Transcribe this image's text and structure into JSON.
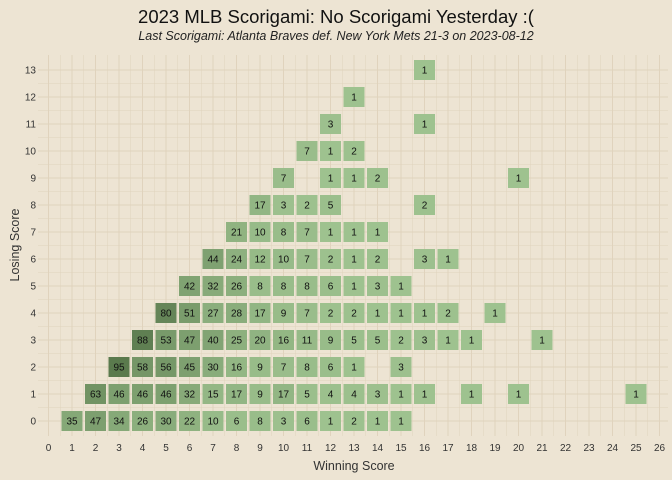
{
  "chart_data": {
    "type": "heatmap",
    "title": "2023 MLB Scorigami: No Scorigami Yesterday :(",
    "subtitle": "Last Scorigami: Atlanta Braves def. New York Mets 21-3 on 2023-08-12",
    "xlabel": "Winning Score",
    "ylabel": "Losing Score",
    "xlim": [
      0,
      26
    ],
    "ylim": [
      0,
      13
    ],
    "x_ticks": [
      0,
      1,
      2,
      3,
      4,
      5,
      6,
      7,
      8,
      9,
      10,
      11,
      12,
      13,
      14,
      15,
      16,
      17,
      18,
      19,
      20,
      21,
      22,
      23,
      24,
      25,
      26
    ],
    "y_ticks": [
      0,
      1,
      2,
      3,
      4,
      5,
      6,
      7,
      8,
      9,
      10,
      11,
      12,
      13
    ],
    "grid": true,
    "colors": {
      "background": "#ede4d3",
      "grid": "#e0d3bd",
      "low": "#9ec28f",
      "high": "#5a7a4d"
    },
    "cells": [
      {
        "x": 1,
        "y": 0,
        "count": 35
      },
      {
        "x": 2,
        "y": 0,
        "count": 47
      },
      {
        "x": 3,
        "y": 0,
        "count": 34
      },
      {
        "x": 4,
        "y": 0,
        "count": 26
      },
      {
        "x": 5,
        "y": 0,
        "count": 30
      },
      {
        "x": 6,
        "y": 0,
        "count": 22
      },
      {
        "x": 7,
        "y": 0,
        "count": 10
      },
      {
        "x": 8,
        "y": 0,
        "count": 6
      },
      {
        "x": 9,
        "y": 0,
        "count": 8
      },
      {
        "x": 10,
        "y": 0,
        "count": 3
      },
      {
        "x": 11,
        "y": 0,
        "count": 6
      },
      {
        "x": 12,
        "y": 0,
        "count": 1
      },
      {
        "x": 13,
        "y": 0,
        "count": 2
      },
      {
        "x": 14,
        "y": 0,
        "count": 1
      },
      {
        "x": 15,
        "y": 0,
        "count": 1
      },
      {
        "x": 2,
        "y": 1,
        "count": 63
      },
      {
        "x": 3,
        "y": 1,
        "count": 46
      },
      {
        "x": 4,
        "y": 1,
        "count": 46
      },
      {
        "x": 5,
        "y": 1,
        "count": 46
      },
      {
        "x": 6,
        "y": 1,
        "count": 32
      },
      {
        "x": 7,
        "y": 1,
        "count": 15
      },
      {
        "x": 8,
        "y": 1,
        "count": 17
      },
      {
        "x": 9,
        "y": 1,
        "count": 9
      },
      {
        "x": 10,
        "y": 1,
        "count": 17
      },
      {
        "x": 11,
        "y": 1,
        "count": 5
      },
      {
        "x": 12,
        "y": 1,
        "count": 4
      },
      {
        "x": 13,
        "y": 1,
        "count": 4
      },
      {
        "x": 14,
        "y": 1,
        "count": 3
      },
      {
        "x": 15,
        "y": 1,
        "count": 1
      },
      {
        "x": 16,
        "y": 1,
        "count": 1
      },
      {
        "x": 18,
        "y": 1,
        "count": 1
      },
      {
        "x": 20,
        "y": 1,
        "count": 1
      },
      {
        "x": 25,
        "y": 1,
        "count": 1
      },
      {
        "x": 3,
        "y": 2,
        "count": 95
      },
      {
        "x": 4,
        "y": 2,
        "count": 58
      },
      {
        "x": 5,
        "y": 2,
        "count": 56
      },
      {
        "x": 6,
        "y": 2,
        "count": 45
      },
      {
        "x": 7,
        "y": 2,
        "count": 30
      },
      {
        "x": 8,
        "y": 2,
        "count": 16
      },
      {
        "x": 9,
        "y": 2,
        "count": 9
      },
      {
        "x": 10,
        "y": 2,
        "count": 7
      },
      {
        "x": 11,
        "y": 2,
        "count": 8
      },
      {
        "x": 12,
        "y": 2,
        "count": 6
      },
      {
        "x": 13,
        "y": 2,
        "count": 1
      },
      {
        "x": 15,
        "y": 2,
        "count": 3
      },
      {
        "x": 4,
        "y": 3,
        "count": 88
      },
      {
        "x": 5,
        "y": 3,
        "count": 53
      },
      {
        "x": 6,
        "y": 3,
        "count": 47
      },
      {
        "x": 7,
        "y": 3,
        "count": 40
      },
      {
        "x": 8,
        "y": 3,
        "count": 25
      },
      {
        "x": 9,
        "y": 3,
        "count": 20
      },
      {
        "x": 10,
        "y": 3,
        "count": 16
      },
      {
        "x": 11,
        "y": 3,
        "count": 11
      },
      {
        "x": 12,
        "y": 3,
        "count": 9
      },
      {
        "x": 13,
        "y": 3,
        "count": 5
      },
      {
        "x": 14,
        "y": 3,
        "count": 5
      },
      {
        "x": 15,
        "y": 3,
        "count": 2
      },
      {
        "x": 16,
        "y": 3,
        "count": 3
      },
      {
        "x": 17,
        "y": 3,
        "count": 1
      },
      {
        "x": 18,
        "y": 3,
        "count": 1
      },
      {
        "x": 21,
        "y": 3,
        "count": 1
      },
      {
        "x": 5,
        "y": 4,
        "count": 80
      },
      {
        "x": 6,
        "y": 4,
        "count": 51
      },
      {
        "x": 7,
        "y": 4,
        "count": 27
      },
      {
        "x": 8,
        "y": 4,
        "count": 28
      },
      {
        "x": 9,
        "y": 4,
        "count": 17
      },
      {
        "x": 10,
        "y": 4,
        "count": 9
      },
      {
        "x": 11,
        "y": 4,
        "count": 7
      },
      {
        "x": 12,
        "y": 4,
        "count": 2
      },
      {
        "x": 13,
        "y": 4,
        "count": 2
      },
      {
        "x": 14,
        "y": 4,
        "count": 1
      },
      {
        "x": 15,
        "y": 4,
        "count": 1
      },
      {
        "x": 16,
        "y": 4,
        "count": 1
      },
      {
        "x": 17,
        "y": 4,
        "count": 2
      },
      {
        "x": 19,
        "y": 4,
        "count": 1
      },
      {
        "x": 6,
        "y": 5,
        "count": 42
      },
      {
        "x": 7,
        "y": 5,
        "count": 32
      },
      {
        "x": 8,
        "y": 5,
        "count": 26
      },
      {
        "x": 9,
        "y": 5,
        "count": 8
      },
      {
        "x": 10,
        "y": 5,
        "count": 8
      },
      {
        "x": 11,
        "y": 5,
        "count": 8
      },
      {
        "x": 12,
        "y": 5,
        "count": 6
      },
      {
        "x": 13,
        "y": 5,
        "count": 1
      },
      {
        "x": 14,
        "y": 5,
        "count": 3
      },
      {
        "x": 15,
        "y": 5,
        "count": 1
      },
      {
        "x": 7,
        "y": 6,
        "count": 44
      },
      {
        "x": 8,
        "y": 6,
        "count": 24
      },
      {
        "x": 9,
        "y": 6,
        "count": 12
      },
      {
        "x": 10,
        "y": 6,
        "count": 10
      },
      {
        "x": 11,
        "y": 6,
        "count": 7
      },
      {
        "x": 12,
        "y": 6,
        "count": 2
      },
      {
        "x": 13,
        "y": 6,
        "count": 1
      },
      {
        "x": 14,
        "y": 6,
        "count": 2
      },
      {
        "x": 16,
        "y": 6,
        "count": 3
      },
      {
        "x": 17,
        "y": 6,
        "count": 1
      },
      {
        "x": 8,
        "y": 7,
        "count": 21
      },
      {
        "x": 9,
        "y": 7,
        "count": 10
      },
      {
        "x": 10,
        "y": 7,
        "count": 8
      },
      {
        "x": 11,
        "y": 7,
        "count": 7
      },
      {
        "x": 12,
        "y": 7,
        "count": 1
      },
      {
        "x": 13,
        "y": 7,
        "count": 1
      },
      {
        "x": 14,
        "y": 7,
        "count": 1
      },
      {
        "x": 9,
        "y": 8,
        "count": 17
      },
      {
        "x": 10,
        "y": 8,
        "count": 3
      },
      {
        "x": 11,
        "y": 8,
        "count": 2
      },
      {
        "x": 12,
        "y": 8,
        "count": 5
      },
      {
        "x": 16,
        "y": 8,
        "count": 2
      },
      {
        "x": 10,
        "y": 9,
        "count": 7
      },
      {
        "x": 12,
        "y": 9,
        "count": 1
      },
      {
        "x": 13,
        "y": 9,
        "count": 1
      },
      {
        "x": 14,
        "y": 9,
        "count": 2
      },
      {
        "x": 20,
        "y": 9,
        "count": 1
      },
      {
        "x": 11,
        "y": 10,
        "count": 7
      },
      {
        "x": 12,
        "y": 10,
        "count": 1
      },
      {
        "x": 13,
        "y": 10,
        "count": 2
      },
      {
        "x": 12,
        "y": 11,
        "count": 3
      },
      {
        "x": 16,
        "y": 11,
        "count": 1
      },
      {
        "x": 13,
        "y": 12,
        "count": 1
      },
      {
        "x": 16,
        "y": 13,
        "count": 1
      }
    ]
  }
}
